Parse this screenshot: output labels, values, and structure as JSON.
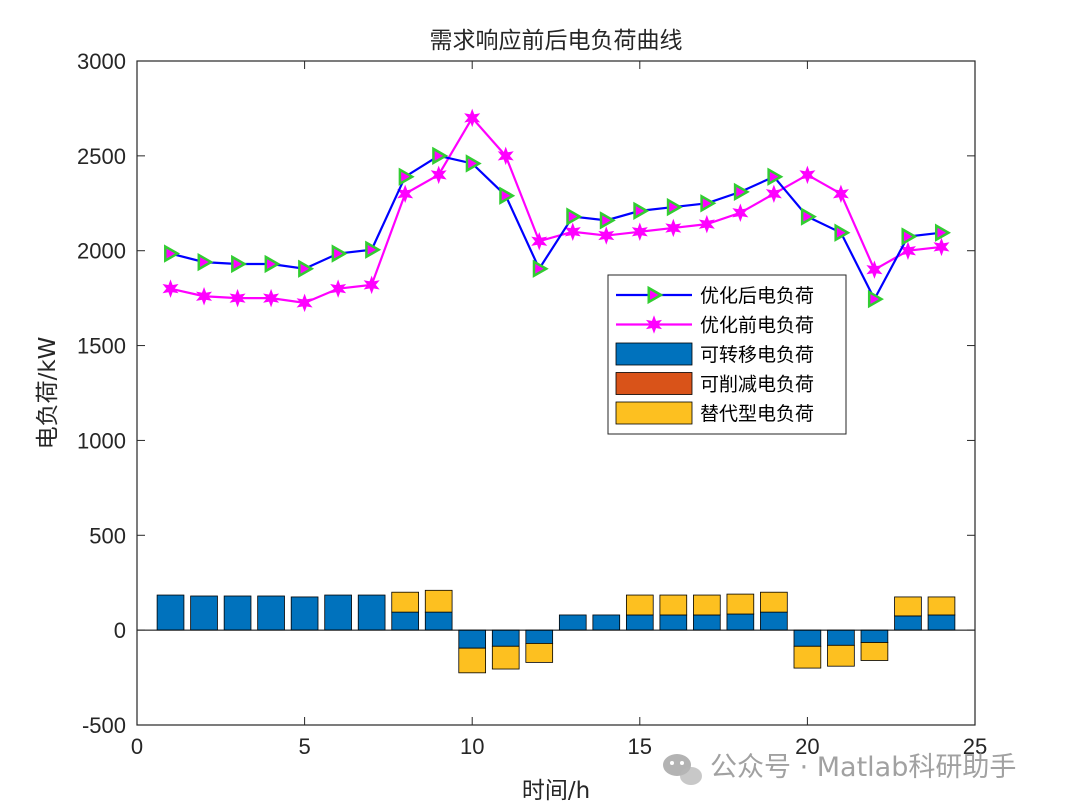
{
  "chart_data": {
    "type": "bar+line",
    "title": "需求响应前后电负荷曲线",
    "xlabel": "时间/h",
    "ylabel": "电负荷/kW",
    "xlim": [
      0,
      25
    ],
    "ylim": [
      -500,
      3000
    ],
    "xticks": [
      0,
      5,
      10,
      15,
      20,
      25
    ],
    "yticks": [
      -500,
      0,
      500,
      1000,
      1500,
      2000,
      2500,
      3000
    ],
    "grid": false,
    "legend_position": "center-right",
    "x": [
      1,
      2,
      3,
      4,
      5,
      6,
      7,
      8,
      9,
      10,
      11,
      12,
      13,
      14,
      15,
      16,
      17,
      18,
      19,
      20,
      21,
      22,
      23,
      24
    ],
    "lines": [
      {
        "name": "优化后电负荷",
        "color": "#0000ff",
        "marker": "triangle-right",
        "marker_color": "#32cd32",
        "marker_fill": "#ff00ff",
        "values": [
          1985,
          1940,
          1930,
          1930,
          1905,
          1985,
          2005,
          2390,
          2500,
          2460,
          2290,
          1905,
          2180,
          2160,
          2210,
          2230,
          2250,
          2310,
          2390,
          2180,
          2095,
          1745,
          2075,
          2095
        ]
      },
      {
        "name": "优化前电负荷",
        "color": "#ff00ff",
        "marker": "star",
        "marker_color": "#ff00ff",
        "values": [
          1800,
          1760,
          1750,
          1750,
          1725,
          1800,
          1820,
          2300,
          2400,
          2700,
          2500,
          2050,
          2100,
          2080,
          2100,
          2120,
          2140,
          2200,
          2300,
          2400,
          2300,
          1900,
          2000,
          2020
        ]
      }
    ],
    "bar_series": [
      {
        "name": "可转移电负荷",
        "color": "#0072bd",
        "values": [
          185,
          180,
          180,
          180,
          175,
          185,
          185,
          95,
          95,
          -95,
          -85,
          -70,
          80,
          80,
          80,
          80,
          80,
          85,
          95,
          -85,
          -80,
          -65,
          75,
          80
        ]
      },
      {
        "name": "可削减电负荷",
        "color": "#d95319",
        "values": [
          0,
          0,
          0,
          0,
          0,
          0,
          0,
          0,
          0,
          0,
          0,
          0,
          0,
          0,
          0,
          0,
          0,
          0,
          0,
          0,
          0,
          0,
          0,
          0
        ]
      },
      {
        "name": "替代型电负荷",
        "color": "#fdc020",
        "values": [
          0,
          0,
          0,
          0,
          0,
          0,
          0,
          105,
          115,
          -130,
          -120,
          -100,
          0,
          0,
          105,
          105,
          105,
          105,
          105,
          -115,
          -110,
          -95,
          100,
          95
        ]
      }
    ]
  },
  "watermark": {
    "icon": "wechat-icon",
    "text": "公众号 · Matlab科研助手"
  }
}
